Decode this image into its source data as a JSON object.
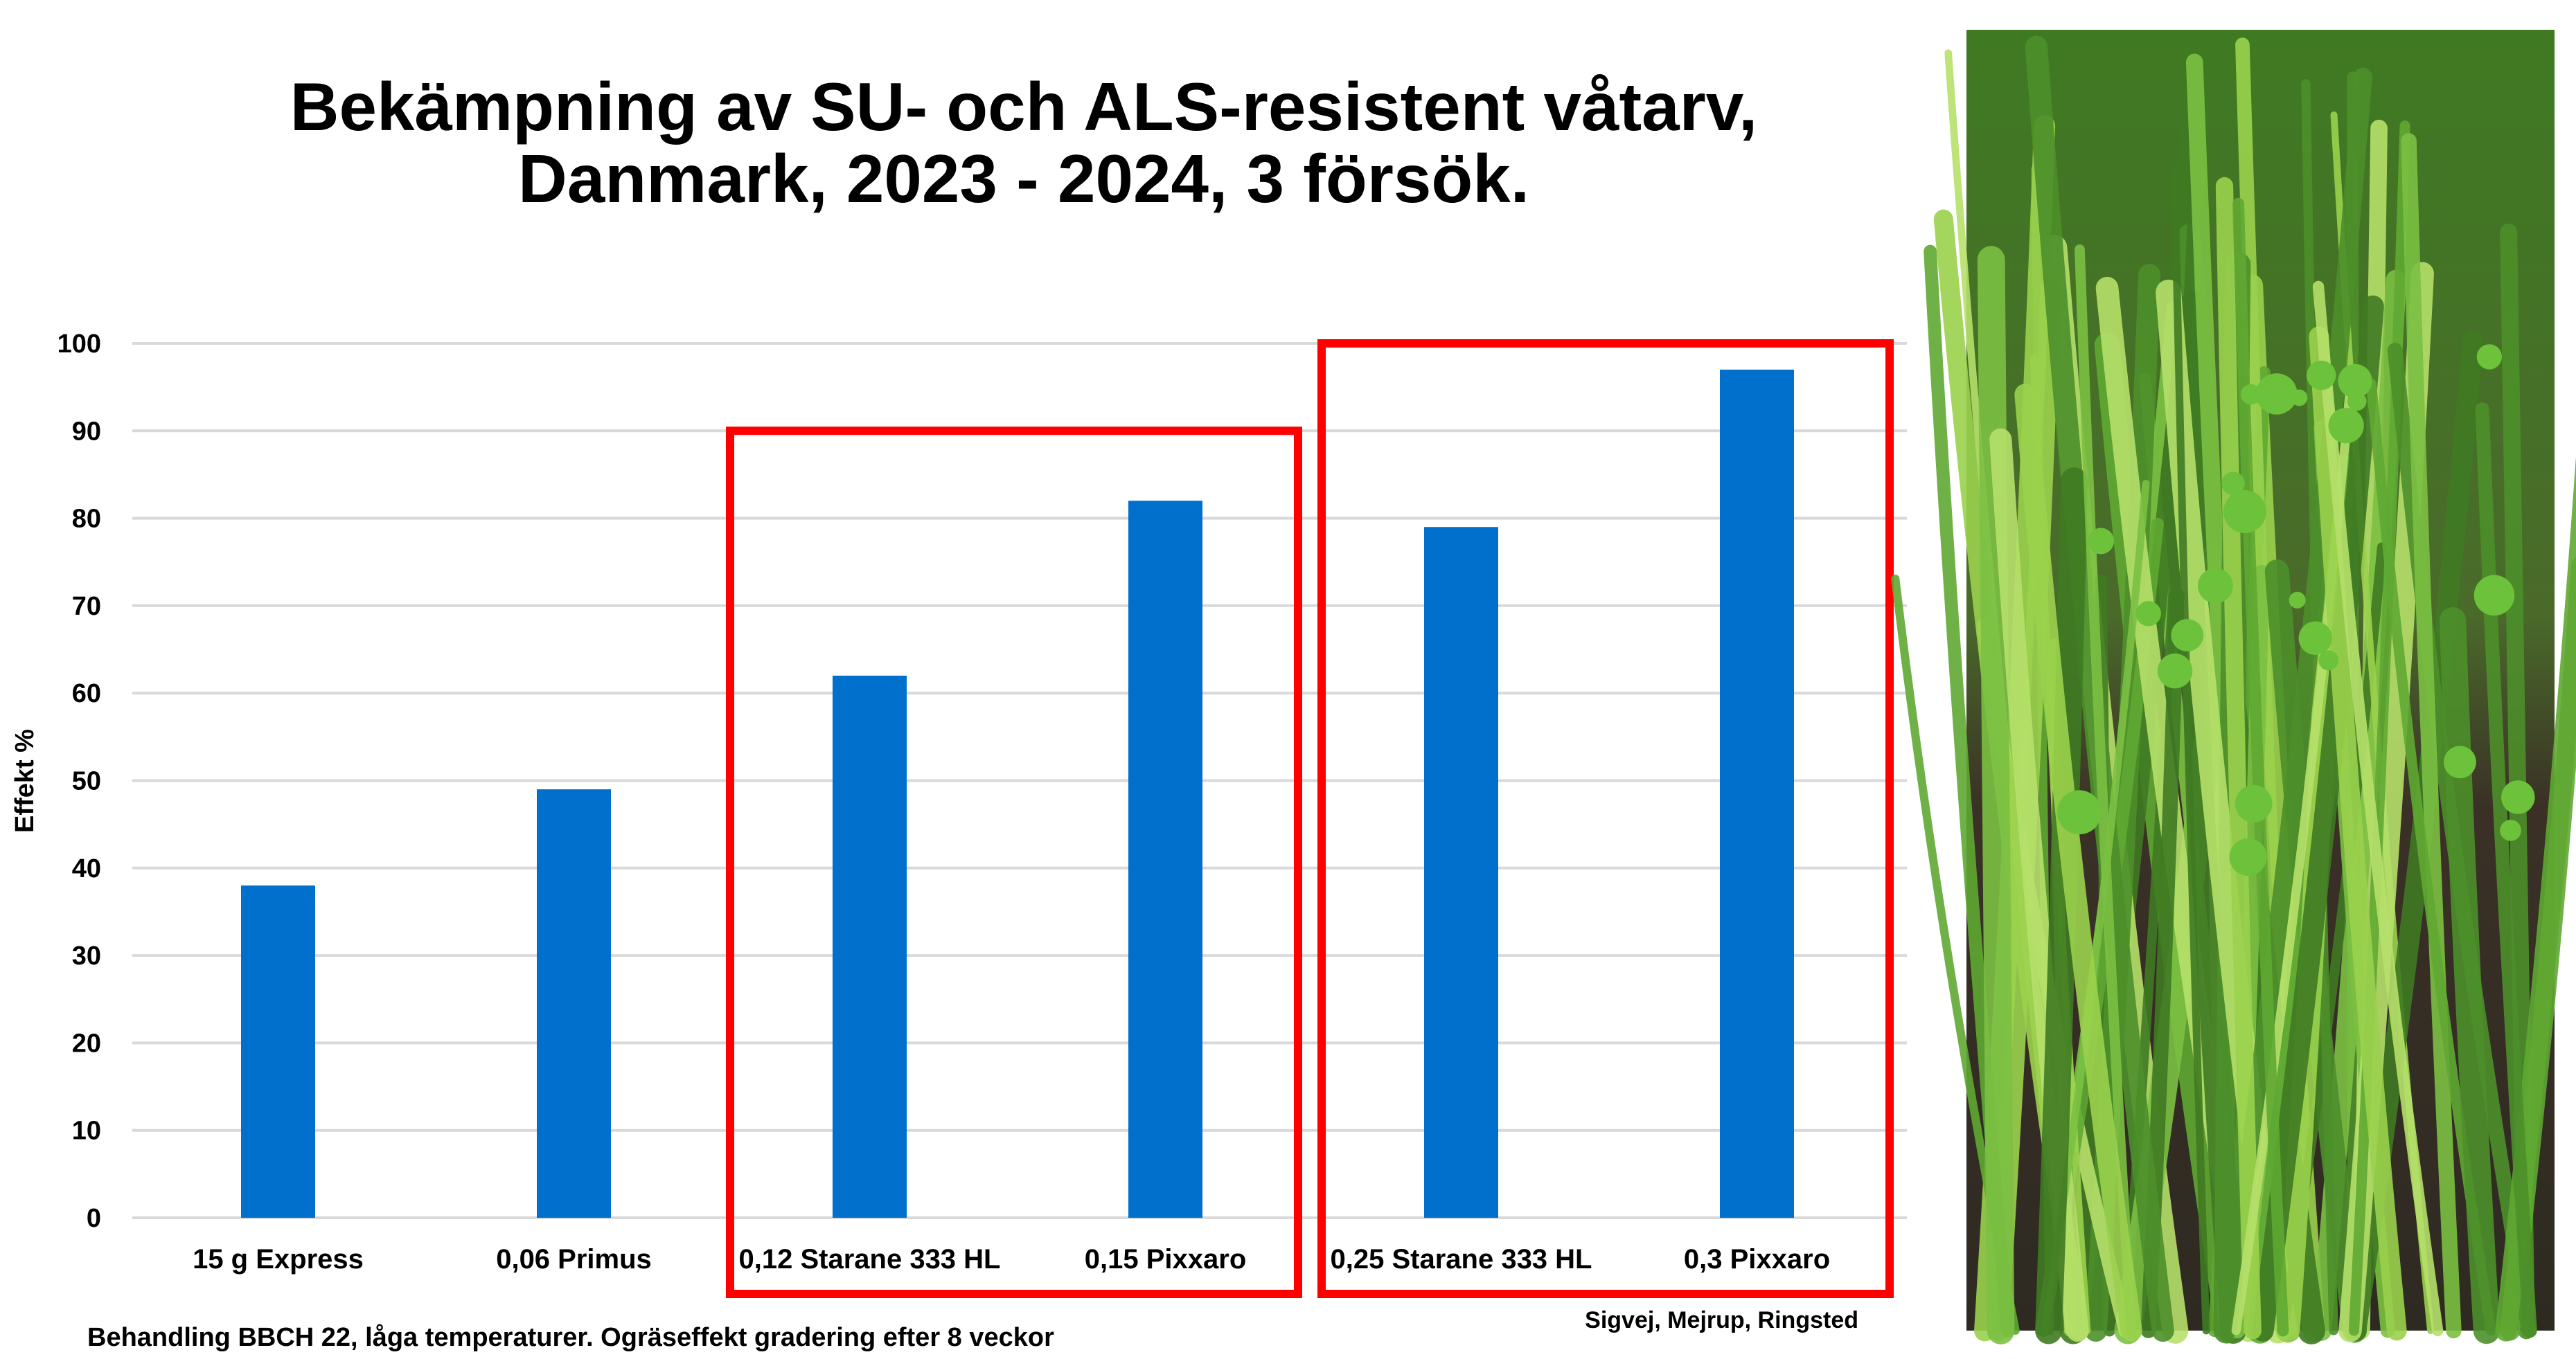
{
  "chart_data": {
    "type": "bar",
    "title": [
      "Bekämpning av SU- och ALS-resistent våtarv,",
      "Danmark, 2023 - 2024, 3 försök."
    ],
    "xlabel": "",
    "ylabel": "Effekt %",
    "ylim": [
      0,
      100
    ],
    "yticks": [
      0,
      10,
      20,
      30,
      40,
      50,
      60,
      70,
      80,
      90,
      100
    ],
    "grid": true,
    "categories": [
      "15 g Express",
      "0,06 Primus",
      "0,12 Starane 333 HL",
      "0,15 Pixxaro",
      "0,25 Starane 333 HL",
      "0,3 Pixxaro"
    ],
    "values": [
      38,
      49,
      62,
      82,
      79,
      97
    ],
    "bar_color": "#0070CC",
    "highlight_color": "#FF0000",
    "highlight_groups": [
      {
        "categories": [
          "0,12 Starane 333 HL",
          "0,15 Pixxaro"
        ],
        "top_value": 90
      },
      {
        "categories": [
          "0,25 Starane 333 HL",
          "0,3 Pixxaro"
        ],
        "top_value": 100
      }
    ],
    "footnote": "Behandling BBCH 22, låga temperaturer. Ogräseffekt gradering efter 8 veckor",
    "sites": "Sigvej, Mejrup, Ringsted"
  }
}
